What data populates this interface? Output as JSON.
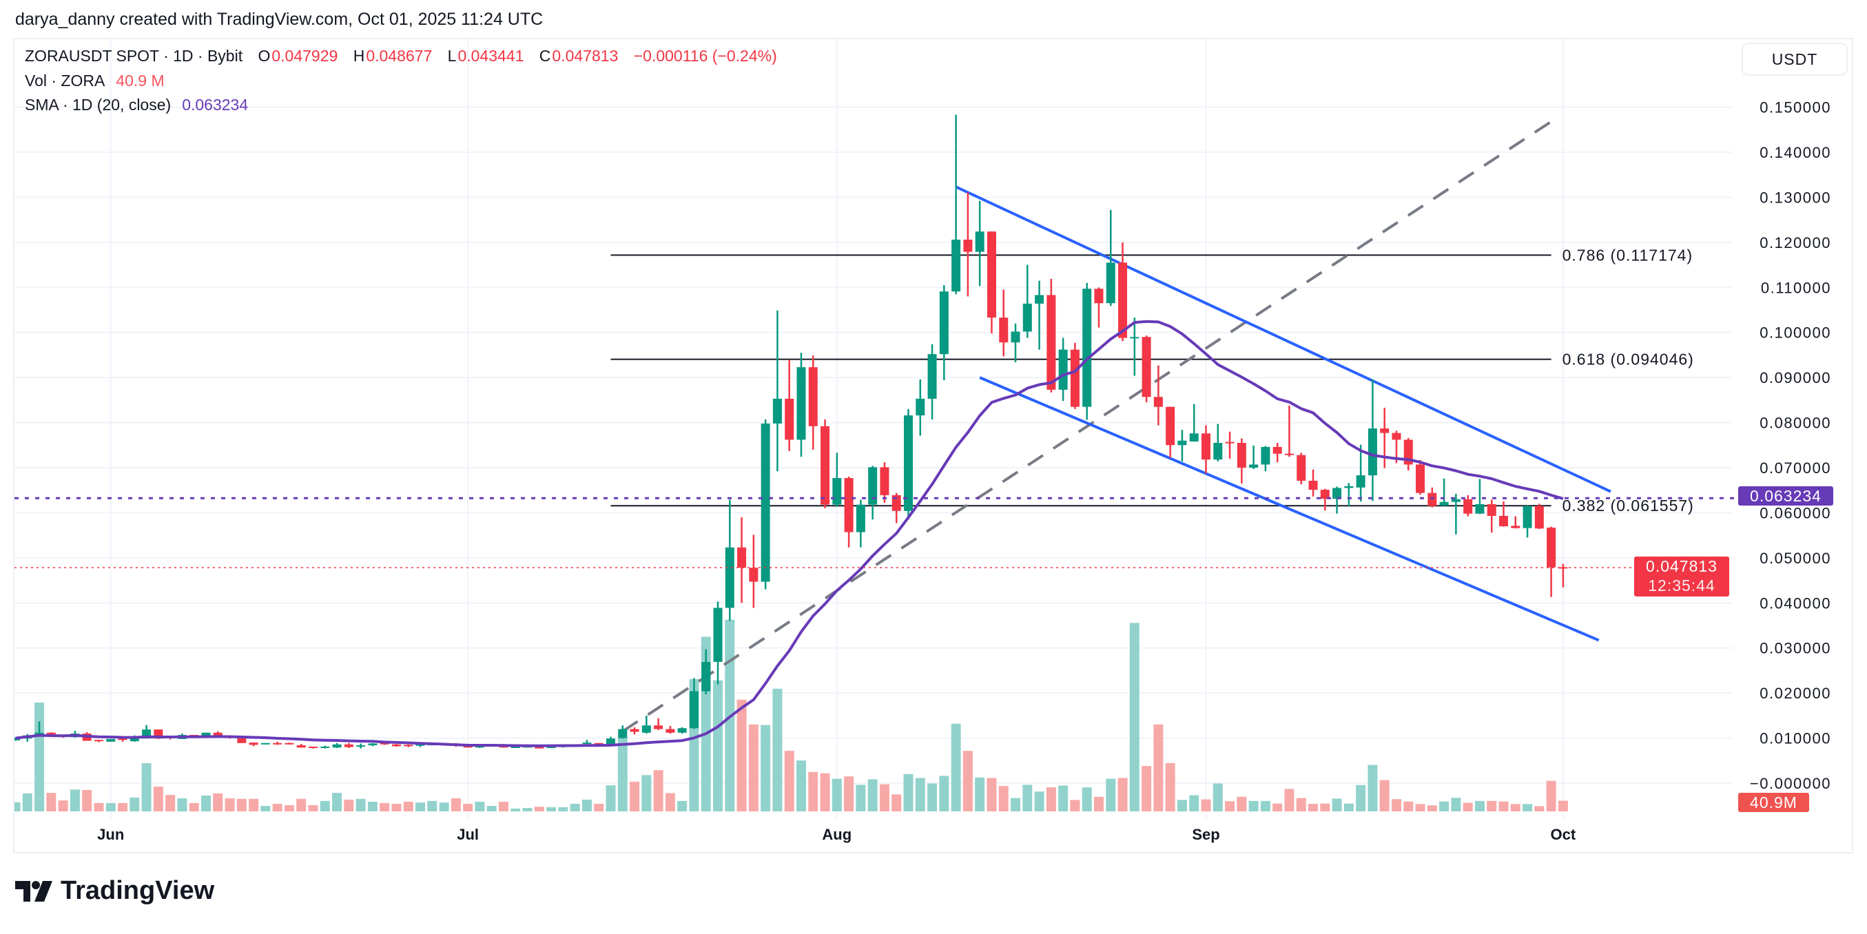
{
  "credit": "darya_danny created with TradingView.com, Oct 01, 2025 11:24 UTC",
  "legend": {
    "symbol": "ZORAUSDT SPOT · 1D · Bybit",
    "o_label": "O",
    "o": "0.047929",
    "h_label": "H",
    "h": "0.048677",
    "l_label": "L",
    "l": "0.043441",
    "c_label": "C",
    "c": "0.047813",
    "change": "−0.000116 (−0.24%)",
    "vol_label": "Vol · ZORA",
    "vol_value": "40.9 M",
    "sma_label": "SMA · 1D (20, close)",
    "sma_value": "0.063234"
  },
  "currency_button": "USDT",
  "tags": {
    "sma": "0.063234",
    "price": "0.047813",
    "countdown": "12:35:44",
    "volume": "40.9M"
  },
  "logo_text": "TradingView",
  "colors": {
    "up": "#089981",
    "down": "#f23645",
    "vol_up": "#92d2cc",
    "vol_down": "#f7a9a7",
    "sma": "#673ab7",
    "channel": "#2962ff",
    "trend": "#787b86",
    "price_line": "#f23645"
  },
  "chart_data": {
    "type": "candlestick",
    "symbol": "ZORAUSDT",
    "price_axis": {
      "ticks": [
        "0.150000",
        "0.140000",
        "0.130000",
        "0.120000",
        "0.110000",
        "0.100000",
        "0.090000",
        "0.080000",
        "0.070000",
        "0.060000",
        "0.050000",
        "0.040000",
        "0.030000",
        "0.020000",
        "0.010000",
        "−0.000000"
      ],
      "range": [
        0,
        0.15
      ],
      "grid": true
    },
    "time_axis": [
      {
        "label": "Jun",
        "date": "2025-06-01"
      },
      {
        "label": "Jul",
        "date": "2025-07-01"
      },
      {
        "label": "Aug",
        "date": "2025-08-01"
      },
      {
        "label": "Sep",
        "date": "2025-09-01"
      },
      {
        "label": "Oct",
        "date": "2025-10-01"
      }
    ],
    "candle_fields": [
      "date",
      "open",
      "high",
      "low",
      "close",
      "volume_M"
    ],
    "candles": [
      [
        "2025-05-24",
        0.0095,
        0.0101,
        0.0094,
        0.01,
        35
      ],
      [
        "2025-05-25",
        0.0099,
        0.0109,
        0.0092,
        0.0106,
        69
      ],
      [
        "2025-05-26",
        0.0104,
        0.0137,
        0.0103,
        0.0112,
        417
      ],
      [
        "2025-05-27",
        0.0112,
        0.0113,
        0.0103,
        0.0104,
        71
      ],
      [
        "2025-05-28",
        0.0106,
        0.0107,
        0.0101,
        0.0104,
        42
      ],
      [
        "2025-05-29",
        0.0102,
        0.0116,
        0.0101,
        0.011,
        84
      ],
      [
        "2025-05-30",
        0.011,
        0.0113,
        0.0094,
        0.0094,
        82
      ],
      [
        "2025-05-31",
        0.0096,
        0.0096,
        0.0091,
        0.0093,
        32
      ],
      [
        "2025-06-01",
        0.0092,
        0.0098,
        0.0092,
        0.0098,
        32
      ],
      [
        "2025-06-02",
        0.0099,
        0.01,
        0.0092,
        0.0096,
        32
      ],
      [
        "2025-06-03",
        0.0093,
        0.0106,
        0.0092,
        0.0099,
        53
      ],
      [
        "2025-06-04",
        0.0099,
        0.0129,
        0.0099,
        0.0119,
        185
      ],
      [
        "2025-06-05",
        0.0119,
        0.0119,
        0.0098,
        0.0099,
        95
      ],
      [
        "2025-06-06",
        0.0104,
        0.0105,
        0.0097,
        0.01,
        63
      ],
      [
        "2025-06-07",
        0.0098,
        0.011,
        0.0098,
        0.0107,
        50
      ],
      [
        "2025-06-08",
        0.0107,
        0.0107,
        0.0101,
        0.0102,
        32
      ],
      [
        "2025-06-09",
        0.0102,
        0.0112,
        0.01,
        0.0112,
        61
      ],
      [
        "2025-06-10",
        0.0112,
        0.0115,
        0.0104,
        0.0105,
        69
      ],
      [
        "2025-06-11",
        0.0105,
        0.0106,
        0.0099,
        0.01,
        50
      ],
      [
        "2025-06-12",
        0.01,
        0.0101,
        0.0089,
        0.0089,
        48
      ],
      [
        "2025-06-13",
        0.009,
        0.009,
        0.0082,
        0.0085,
        48
      ],
      [
        "2025-06-14",
        0.0086,
        0.0089,
        0.0086,
        0.0089,
        21
      ],
      [
        "2025-06-15",
        0.0089,
        0.0092,
        0.0085,
        0.0086,
        29
      ],
      [
        "2025-06-16",
        0.0089,
        0.009,
        0.0086,
        0.0086,
        24
      ],
      [
        "2025-06-17",
        0.0084,
        0.0087,
        0.0079,
        0.0079,
        48
      ],
      [
        "2025-06-18",
        0.0081,
        0.0081,
        0.0077,
        0.0078,
        24
      ],
      [
        "2025-06-19",
        0.0079,
        0.0083,
        0.0077,
        0.0081,
        40
      ],
      [
        "2025-06-20",
        0.0079,
        0.0089,
        0.0078,
        0.0086,
        71
      ],
      [
        "2025-06-21",
        0.0086,
        0.0089,
        0.0078,
        0.008,
        45
      ],
      [
        "2025-06-22",
        0.0082,
        0.0088,
        0.0077,
        0.0084,
        48
      ],
      [
        "2025-06-23",
        0.0084,
        0.0089,
        0.0082,
        0.0088,
        37
      ],
      [
        "2025-06-24",
        0.009,
        0.0092,
        0.0085,
        0.0086,
        32
      ],
      [
        "2025-06-25",
        0.0086,
        0.0087,
        0.0081,
        0.0082,
        29
      ],
      [
        "2025-06-26",
        0.0085,
        0.0086,
        0.008,
        0.0082,
        37
      ],
      [
        "2025-06-27",
        0.0084,
        0.0086,
        0.008,
        0.0086,
        34
      ],
      [
        "2025-06-28",
        0.0084,
        0.0088,
        0.0084,
        0.0087,
        40
      ],
      [
        "2025-06-29",
        0.0084,
        0.0089,
        0.0084,
        0.0088,
        34
      ],
      [
        "2025-06-30",
        0.0088,
        0.0089,
        0.0081,
        0.0084,
        50
      ],
      [
        "2025-07-01",
        0.0084,
        0.0084,
        0.0079,
        0.0079,
        29
      ],
      [
        "2025-07-02",
        0.0079,
        0.0087,
        0.0078,
        0.0084,
        37
      ],
      [
        "2025-07-03",
        0.0084,
        0.0086,
        0.0084,
        0.0086,
        21
      ],
      [
        "2025-07-04",
        0.0085,
        0.0087,
        0.0079,
        0.0079,
        37
      ],
      [
        "2025-07-05",
        0.0079,
        0.0081,
        0.0079,
        0.0081,
        11
      ],
      [
        "2025-07-06",
        0.008,
        0.0082,
        0.008,
        0.0082,
        13
      ],
      [
        "2025-07-07",
        0.0082,
        0.0083,
        0.0077,
        0.0077,
        18
      ],
      [
        "2025-07-08",
        0.0079,
        0.0081,
        0.0079,
        0.0081,
        16
      ],
      [
        "2025-07-09",
        0.008,
        0.0084,
        0.0079,
        0.0083,
        16
      ],
      [
        "2025-07-10",
        0.0081,
        0.0086,
        0.0081,
        0.0086,
        29
      ],
      [
        "2025-07-11",
        0.0088,
        0.0096,
        0.0088,
        0.009,
        45
      ],
      [
        "2025-07-12",
        0.0089,
        0.0089,
        0.0081,
        0.0082,
        29
      ],
      [
        "2025-07-13",
        0.0085,
        0.0103,
        0.0082,
        0.0099,
        100
      ],
      [
        "2025-07-14",
        0.01,
        0.0128,
        0.0099,
        0.012,
        283
      ],
      [
        "2025-07-15",
        0.012,
        0.0124,
        0.0108,
        0.0114,
        114
      ],
      [
        "2025-07-16",
        0.0112,
        0.015,
        0.011,
        0.0128,
        139
      ],
      [
        "2025-07-17",
        0.0128,
        0.0144,
        0.0118,
        0.012,
        158
      ],
      [
        "2025-07-18",
        0.012,
        0.0127,
        0.011,
        0.0112,
        70
      ],
      [
        "2025-07-19",
        0.0112,
        0.0124,
        0.011,
        0.0122,
        40
      ],
      [
        "2025-07-20",
        0.0122,
        0.0233,
        0.012,
        0.0204,
        507
      ],
      [
        "2025-07-21",
        0.0204,
        0.0297,
        0.0197,
        0.0269,
        669
      ],
      [
        "2025-07-22",
        0.0269,
        0.0403,
        0.0219,
        0.0389,
        502
      ],
      [
        "2025-07-23",
        0.0389,
        0.0629,
        0.036,
        0.0523,
        734
      ],
      [
        "2025-07-24",
        0.0523,
        0.059,
        0.04,
        0.0478,
        428
      ],
      [
        "2025-07-25",
        0.0478,
        0.0551,
        0.0389,
        0.0447,
        333
      ],
      [
        "2025-07-26",
        0.0447,
        0.0807,
        0.043,
        0.0798,
        331
      ],
      [
        "2025-07-27",
        0.0798,
        0.1049,
        0.0692,
        0.0853,
        470
      ],
      [
        "2025-07-28",
        0.0853,
        0.094,
        0.0737,
        0.0762,
        232
      ],
      [
        "2025-07-29",
        0.0762,
        0.0955,
        0.0724,
        0.0923,
        195
      ],
      [
        "2025-07-30",
        0.0923,
        0.0949,
        0.074,
        0.0792,
        151
      ],
      [
        "2025-07-31",
        0.0792,
        0.0807,
        0.061,
        0.0618,
        146
      ],
      [
        "2025-08-01",
        0.0618,
        0.0733,
        0.0613,
        0.0677,
        125
      ],
      [
        "2025-08-02",
        0.0677,
        0.068,
        0.0523,
        0.0557,
        134
      ],
      [
        "2025-08-03",
        0.0557,
        0.0629,
        0.0523,
        0.0618,
        102
      ],
      [
        "2025-08-04",
        0.0618,
        0.0704,
        0.0585,
        0.0701,
        123
      ],
      [
        "2025-08-05",
        0.0701,
        0.0712,
        0.0622,
        0.0639,
        104
      ],
      [
        "2025-08-06",
        0.0639,
        0.0644,
        0.0577,
        0.0604,
        65
      ],
      [
        "2025-08-07",
        0.0604,
        0.083,
        0.0585,
        0.0816,
        143
      ],
      [
        "2025-08-08",
        0.0816,
        0.0896,
        0.0771,
        0.0853,
        128
      ],
      [
        "2025-08-09",
        0.0853,
        0.0974,
        0.0807,
        0.0952,
        107
      ],
      [
        "2025-08-10",
        0.0952,
        0.1105,
        0.0894,
        0.1091,
        136
      ],
      [
        "2025-08-11",
        0.1091,
        0.1483,
        0.1085,
        0.1206,
        336
      ],
      [
        "2025-08-12",
        0.1206,
        0.1311,
        0.108,
        0.1179,
        232
      ],
      [
        "2025-08-13",
        0.1179,
        0.1292,
        0.1103,
        0.1224,
        130
      ],
      [
        "2025-08-14",
        0.1224,
        0.1224,
        0.0998,
        0.1033,
        128
      ],
      [
        "2025-08-15",
        0.1033,
        0.1095,
        0.0947,
        0.0978,
        97
      ],
      [
        "2025-08-16",
        0.0978,
        0.102,
        0.0934,
        0.1002,
        51
      ],
      [
        "2025-08-17",
        0.1002,
        0.115,
        0.0988,
        0.1064,
        102
      ],
      [
        "2025-08-18",
        0.1064,
        0.1115,
        0.0962,
        0.1083,
        76
      ],
      [
        "2025-08-19",
        0.1083,
        0.1119,
        0.0867,
        0.0873,
        92
      ],
      [
        "2025-08-20",
        0.0873,
        0.0988,
        0.0848,
        0.0962,
        99
      ],
      [
        "2025-08-21",
        0.0962,
        0.0977,
        0.083,
        0.0835,
        44
      ],
      [
        "2025-08-22",
        0.0835,
        0.111,
        0.0806,
        0.1097,
        92
      ],
      [
        "2025-08-23",
        0.1097,
        0.11,
        0.1011,
        0.1065,
        56
      ],
      [
        "2025-08-24",
        0.1065,
        0.1272,
        0.1059,
        0.1155,
        125
      ],
      [
        "2025-08-25",
        0.1155,
        0.12,
        0.0981,
        0.0988,
        128
      ],
      [
        "2025-08-26",
        0.0988,
        0.1033,
        0.0904,
        0.099,
        722
      ],
      [
        "2025-08-27",
        0.099,
        0.0993,
        0.0845,
        0.0857,
        174
      ],
      [
        "2025-08-28",
        0.0857,
        0.0927,
        0.0794,
        0.0835,
        333
      ],
      [
        "2025-08-29",
        0.0835,
        0.0835,
        0.0722,
        0.075,
        185
      ],
      [
        "2025-08-30",
        0.075,
        0.0784,
        0.0714,
        0.076,
        44
      ],
      [
        "2025-08-31",
        0.0758,
        0.0841,
        0.0758,
        0.0776,
        62
      ],
      [
        "2025-09-01",
        0.0776,
        0.0794,
        0.0687,
        0.0718,
        46
      ],
      [
        "2025-09-02",
        0.0718,
        0.0797,
        0.0714,
        0.0755,
        107
      ],
      [
        "2025-09-03",
        0.0757,
        0.078,
        0.072,
        0.0755,
        39
      ],
      [
        "2025-09-04",
        0.0755,
        0.0765,
        0.0665,
        0.07,
        56
      ],
      [
        "2025-09-05",
        0.07,
        0.0749,
        0.0697,
        0.0707,
        40
      ],
      [
        "2025-09-06",
        0.0707,
        0.0748,
        0.0692,
        0.0746,
        40
      ],
      [
        "2025-09-07",
        0.0746,
        0.0755,
        0.0712,
        0.0731,
        30
      ],
      [
        "2025-09-08",
        0.0731,
        0.0838,
        0.0724,
        0.0728,
        86
      ],
      [
        "2025-09-09",
        0.0728,
        0.0733,
        0.0663,
        0.0671,
        51
      ],
      [
        "2025-09-10",
        0.0671,
        0.0696,
        0.0636,
        0.0651,
        29
      ],
      [
        "2025-09-11",
        0.0651,
        0.0653,
        0.0605,
        0.0631,
        30
      ],
      [
        "2025-09-12",
        0.0631,
        0.0658,
        0.0598,
        0.0655,
        49
      ],
      [
        "2025-09-13",
        0.0655,
        0.0666,
        0.0615,
        0.0659,
        30
      ],
      [
        "2025-09-14",
        0.0656,
        0.0751,
        0.0625,
        0.0683,
        101
      ],
      [
        "2025-09-15",
        0.0683,
        0.0896,
        0.0626,
        0.0787,
        178
      ],
      [
        "2025-09-16",
        0.0787,
        0.0833,
        0.0699,
        0.0777,
        120
      ],
      [
        "2025-09-17",
        0.0777,
        0.0782,
        0.071,
        0.0762,
        47
      ],
      [
        "2025-09-18",
        0.0762,
        0.0766,
        0.0694,
        0.0707,
        38
      ],
      [
        "2025-09-19",
        0.0707,
        0.0717,
        0.064,
        0.0644,
        28
      ],
      [
        "2025-09-20",
        0.0644,
        0.0656,
        0.0612,
        0.0615,
        23
      ],
      [
        "2025-09-21",
        0.0616,
        0.0676,
        0.0615,
        0.0624,
        38
      ],
      [
        "2025-09-22",
        0.0624,
        0.0642,
        0.0552,
        0.063,
        52
      ],
      [
        "2025-09-23",
        0.063,
        0.0639,
        0.0592,
        0.0598,
        33
      ],
      [
        "2025-09-24",
        0.0598,
        0.0675,
        0.0597,
        0.0619,
        40
      ],
      [
        "2025-09-25",
        0.0619,
        0.0629,
        0.0556,
        0.0593,
        40
      ],
      [
        "2025-09-26",
        0.0593,
        0.0625,
        0.0569,
        0.057,
        38
      ],
      [
        "2025-09-27",
        0.0571,
        0.0592,
        0.0565,
        0.0566,
        28
      ],
      [
        "2025-09-28",
        0.0566,
        0.0616,
        0.0545,
        0.0615,
        28
      ],
      [
        "2025-09-29",
        0.0615,
        0.062,
        0.0564,
        0.0565,
        20
      ],
      [
        "2025-09-30",
        0.0567,
        0.0569,
        0.0413,
        0.0479,
        117
      ],
      [
        "2025-10-01",
        0.047929,
        0.048677,
        0.043441,
        0.047813,
        40.9
      ]
    ],
    "sma": {
      "period": 20,
      "source": "close",
      "last": 0.063234
    },
    "last_price": 0.047813,
    "fib_range": {
      "from": "2025-07-13",
      "to": "2025-09-30"
    },
    "fib_levels": [
      {
        "price": 0.117174,
        "label": "0.786 (0.117174)"
      },
      {
        "price": 0.094046,
        "label": "0.618 (0.094046)"
      },
      {
        "price": 0.061557,
        "label": "0.382 (0.061557)"
      }
    ],
    "drawings": {
      "channel_upper": [
        [
          "2025-08-11",
          0.1323
        ],
        [
          "2025-10-05",
          0.0647
        ]
      ],
      "channel_lower": [
        [
          "2025-08-13",
          0.09
        ],
        [
          "2025-10-04",
          0.0317
        ]
      ],
      "trend_dashed": [
        [
          "2025-07-14",
          0.0115
        ],
        [
          "2025-09-30",
          0.1468
        ]
      ]
    }
  }
}
